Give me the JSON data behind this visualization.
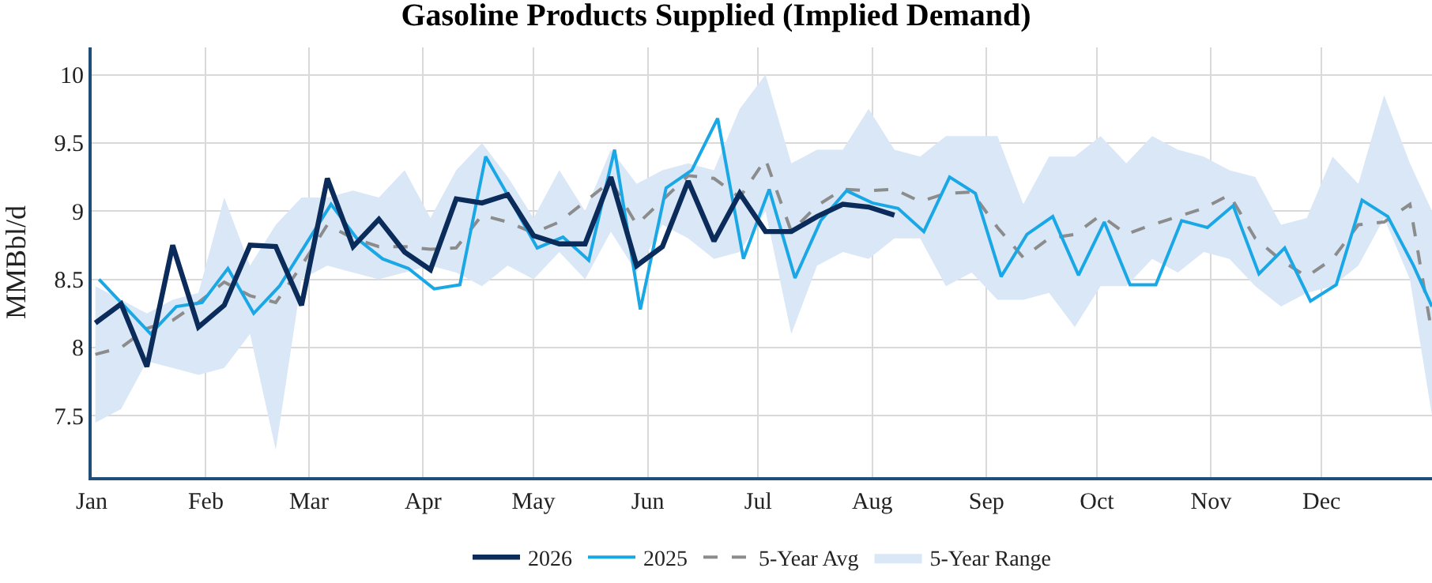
{
  "chart_data": {
    "type": "line",
    "title": "Gasoline Products Supplied (Implied Demand)",
    "ylabel": "MMBbl/d",
    "xlim": [
      "--01-01",
      "--12-31"
    ],
    "xticks": [
      {
        "value": "--01-01",
        "label": "Jan"
      },
      {
        "value": "--02-01",
        "label": "Feb"
      },
      {
        "value": "--03-01",
        "label": "Mar"
      },
      {
        "value": "--04-01",
        "label": "Apr"
      },
      {
        "value": "--05-01",
        "label": "May"
      },
      {
        "value": "--06-01",
        "label": "Jun"
      },
      {
        "value": "--07-01",
        "label": "Jul"
      },
      {
        "value": "--08-01",
        "label": "Aug"
      },
      {
        "value": "--09-01",
        "label": "Sep"
      },
      {
        "value": "--10-01",
        "label": "Oct"
      },
      {
        "value": "--11-01",
        "label": "Nov"
      },
      {
        "value": "--12-01",
        "label": "Dec"
      }
    ],
    "ylim": [
      7.05,
      10.2
    ],
    "yticks": [
      7.5,
      8,
      8.5,
      9,
      9.5,
      10
    ],
    "grid": true,
    "legend": "bottom",
    "marker": "none",
    "series": [
      {
        "name": "5-Year Avg",
        "color": "#8c8c8c",
        "line_style": "dashed",
        "x": [
          "--01-02",
          "--01-09",
          "--01-16",
          "--01-23",
          "--01-30",
          "--02-06",
          "--02-13",
          "--02-20",
          "--02-27",
          "--03-06",
          "--03-13",
          "--03-20",
          "--03-27",
          "--04-03",
          "--04-10",
          "--04-17",
          "--04-24",
          "--05-01",
          "--05-08",
          "--05-15",
          "--05-22",
          "--05-29",
          "--06-05",
          "--06-12",
          "--06-19",
          "--06-26",
          "--07-03",
          "--07-10",
          "--07-17",
          "--07-24",
          "--07-31",
          "--08-07",
          "--08-14",
          "--08-21",
          "--08-28",
          "--09-04",
          "--09-11",
          "--09-18",
          "--09-25",
          "--10-02",
          "--10-09",
          "--10-16",
          "--10-23",
          "--10-30",
          "--11-06",
          "--11-13",
          "--11-20",
          "--11-27",
          "--12-04",
          "--12-11",
          "--12-18",
          "--12-25",
          "--12-31"
        ],
        "values": [
          7.95,
          8.0,
          8.14,
          8.2,
          8.33,
          8.48,
          8.38,
          8.33,
          8.6,
          8.9,
          8.8,
          8.74,
          8.74,
          8.72,
          8.73,
          8.97,
          8.92,
          8.84,
          8.92,
          9.07,
          9.22,
          8.9,
          9.08,
          9.26,
          9.24,
          9.1,
          9.38,
          8.85,
          9.04,
          9.16,
          9.15,
          9.16,
          9.07,
          9.13,
          9.14,
          8.88,
          8.66,
          8.8,
          8.83,
          8.97,
          8.83,
          8.9,
          8.96,
          9.02,
          9.12,
          8.8,
          8.64,
          8.52,
          8.65,
          8.9,
          8.92,
          9.05,
          8.1
        ]
      },
      {
        "name": "5-Year Range",
        "type": "area",
        "color": "#d9e7f7",
        "x": [
          "--01-02",
          "--01-09",
          "--01-16",
          "--01-23",
          "--01-30",
          "--02-06",
          "--02-13",
          "--02-20",
          "--02-27",
          "--03-06",
          "--03-13",
          "--03-20",
          "--03-27",
          "--04-03",
          "--04-10",
          "--04-17",
          "--04-24",
          "--05-01",
          "--05-08",
          "--05-15",
          "--05-22",
          "--05-29",
          "--06-05",
          "--06-12",
          "--06-19",
          "--06-26",
          "--07-03",
          "--07-10",
          "--07-17",
          "--07-24",
          "--07-31",
          "--08-07",
          "--08-14",
          "--08-21",
          "--08-28",
          "--09-04",
          "--09-11",
          "--09-18",
          "--09-25",
          "--10-02",
          "--10-09",
          "--10-16",
          "--10-23",
          "--10-30",
          "--11-06",
          "--11-13",
          "--11-20",
          "--11-27",
          "--12-04",
          "--12-11",
          "--12-18",
          "--12-25",
          "--12-31"
        ],
        "lower": [
          7.45,
          7.55,
          7.9,
          7.85,
          7.8,
          7.85,
          8.1,
          7.25,
          8.5,
          8.6,
          8.55,
          8.5,
          8.55,
          8.6,
          8.55,
          8.45,
          8.6,
          8.5,
          8.7,
          8.5,
          8.85,
          8.55,
          8.9,
          8.8,
          8.65,
          8.7,
          9.0,
          8.1,
          8.6,
          8.7,
          8.65,
          8.8,
          8.8,
          8.45,
          8.55,
          8.35,
          8.35,
          8.4,
          8.15,
          8.45,
          8.45,
          8.65,
          8.55,
          8.7,
          8.65,
          8.45,
          8.3,
          8.4,
          8.45,
          8.6,
          8.95,
          8.5,
          7.5
        ],
        "values": [
          null,
          null,
          null,
          null,
          null,
          null,
          null,
          null,
          null,
          null,
          null,
          null,
          null,
          null,
          null,
          null,
          null,
          null,
          null,
          null,
          null,
          null,
          null,
          null,
          null,
          null,
          null,
          null,
          null,
          null,
          null,
          null,
          null,
          null,
          null,
          null,
          null,
          null,
          null,
          null,
          null,
          null,
          null,
          null,
          null,
          null,
          null,
          null,
          null,
          null,
          null,
          null,
          null
        ],
        "upper": [
          8.45,
          8.35,
          8.25,
          8.35,
          8.4,
          9.1,
          8.6,
          8.9,
          9.1,
          9.1,
          9.15,
          9.1,
          9.3,
          8.95,
          9.3,
          9.5,
          9.25,
          8.95,
          9.3,
          9.0,
          9.45,
          9.2,
          9.3,
          9.35,
          9.3,
          9.75,
          10.0,
          9.35,
          9.45,
          9.45,
          9.75,
          9.45,
          9.4,
          9.55,
          9.55,
          9.55,
          9.05,
          9.4,
          9.4,
          9.55,
          9.35,
          9.55,
          9.45,
          9.4,
          9.3,
          9.25,
          8.9,
          8.95,
          9.4,
          9.2,
          9.85,
          9.35,
          9.0
        ]
      },
      {
        "name": "2025",
        "color": "#1aa7e6",
        "line_style": "solid",
        "x": [
          "--01-03",
          "--01-10",
          "--01-17",
          "--01-24",
          "--01-31",
          "--02-07",
          "--02-14",
          "--02-21",
          "--02-28",
          "--03-07",
          "--03-14",
          "--03-21",
          "--03-28",
          "--04-04",
          "--04-11",
          "--04-18",
          "--04-25",
          "--05-02",
          "--05-09",
          "--05-16",
          "--05-23",
          "--05-30",
          "--06-06",
          "--06-13",
          "--06-20",
          "--06-27",
          "--07-04",
          "--07-11",
          "--07-18",
          "--07-25",
          "--08-01",
          "--08-08",
          "--08-15",
          "--08-22",
          "--08-29",
          "--09-05",
          "--09-12",
          "--09-19",
          "--09-26",
          "--10-03",
          "--10-10",
          "--10-17",
          "--10-24",
          "--10-31",
          "--11-07",
          "--11-14",
          "--11-21",
          "--11-28",
          "--12-05",
          "--12-12",
          "--12-19",
          "--12-26",
          "--12-31"
        ],
        "values": [
          8.5,
          8.3,
          8.1,
          8.3,
          8.33,
          8.58,
          8.25,
          8.45,
          8.75,
          9.05,
          8.8,
          8.65,
          8.58,
          8.43,
          8.46,
          9.4,
          9.07,
          8.73,
          8.81,
          8.64,
          9.45,
          8.28,
          9.17,
          9.3,
          9.68,
          8.65,
          9.16,
          8.51,
          8.93,
          9.15,
          9.06,
          9.02,
          8.85,
          9.25,
          9.13,
          8.52,
          8.83,
          8.96,
          8.53,
          8.92,
          8.46,
          8.46,
          8.93,
          8.88,
          9.04,
          8.54,
          8.73,
          8.34,
          8.46,
          9.08,
          8.96,
          8.6,
          8.3
        ]
      },
      {
        "name": "2026",
        "color": "#0b2c5a",
        "line_style": "solid",
        "x": [
          "--01-02",
          "--01-09",
          "--01-16",
          "--01-23",
          "--01-30",
          "--02-06",
          "--02-13",
          "--02-20",
          "--02-27",
          "--03-06",
          "--03-13",
          "--03-20",
          "--03-27",
          "--04-03",
          "--04-10",
          "--04-17",
          "--04-24",
          "--05-01",
          "--05-08",
          "--05-15",
          "--05-22",
          "--05-29",
          "--06-05",
          "--06-12",
          "--06-19",
          "--06-26",
          "--07-03",
          "--07-10",
          "--07-17",
          "--07-24",
          "--07-31",
          "--08-07"
        ],
        "values": [
          8.18,
          8.32,
          7.86,
          8.75,
          8.15,
          8.31,
          8.75,
          8.74,
          8.31,
          9.24,
          8.74,
          8.94,
          8.7,
          8.57,
          9.09,
          9.06,
          9.12,
          8.82,
          8.76,
          8.76,
          9.25,
          8.6,
          8.74,
          9.22,
          8.78,
          9.13,
          8.85,
          8.85,
          8.96,
          9.05,
          9.03,
          8.97
        ]
      }
    ]
  }
}
